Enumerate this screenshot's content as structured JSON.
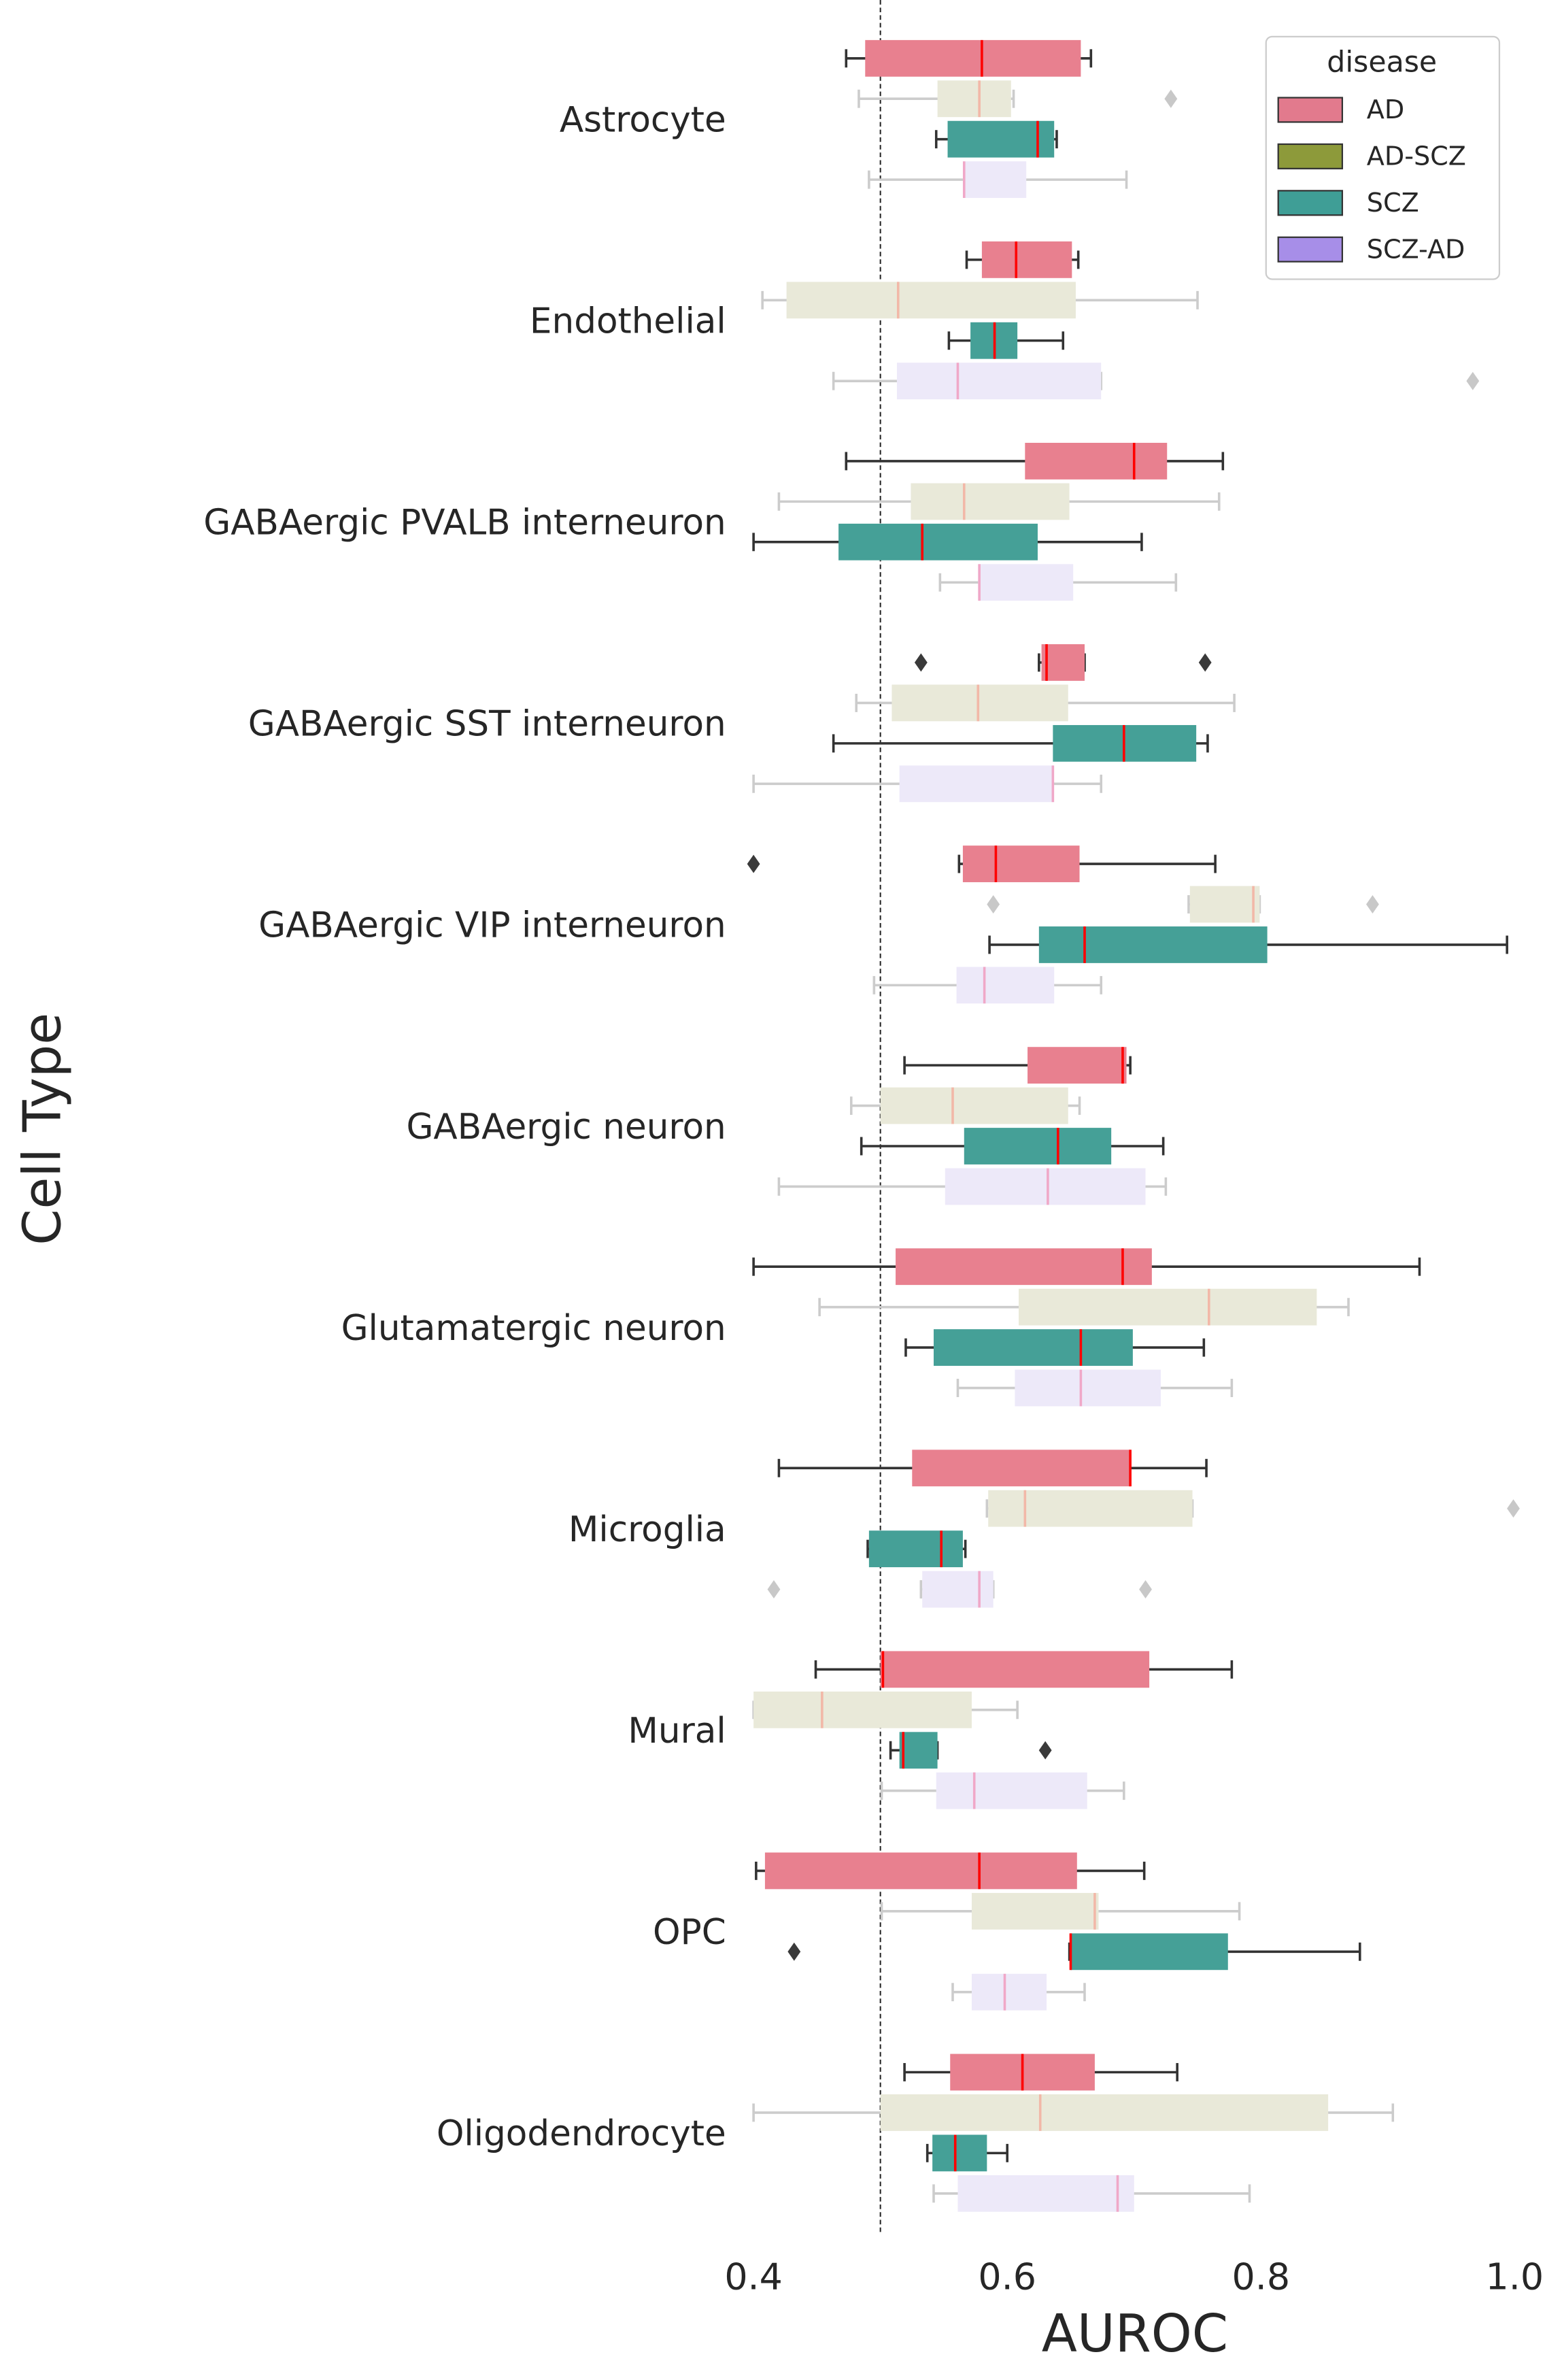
{
  "chart_data": {
    "type": "boxplot",
    "orientation": "horizontal",
    "xlabel": "AUROC",
    "ylabel": "Cell Type",
    "xlim": [
      0.4,
      1.0
    ],
    "xticks": [
      0.4,
      0.6,
      0.8,
      {
        "value": 1.0,
        "label": "1.0"
      }
    ],
    "reference_line": 0.5,
    "legend_title": "disease",
    "legend_position": "upper right",
    "categories": [
      "Astrocyte",
      "Endothelial",
      "GABAergic PVALB interneuron",
      "GABAergic SST interneuron",
      "GABAergic VIP interneuron",
      "GABAergic neuron",
      "Glutamatergic neuron",
      "Microglia",
      "Mural",
      "OPC",
      "Oligodendrocyte"
    ],
    "series": [
      {
        "name": "AD",
        "color": "#e27a8d",
        "box_color": "#e8808f",
        "whisker_color": "#333333",
        "median_color": "#ff0000",
        "values": [
          [
            0.473,
            0.488,
            0.58,
            0.658,
            0.666
          ],
          [
            0.568,
            0.58,
            0.607,
            0.651,
            0.656
          ],
          [
            0.473,
            0.614,
            0.7,
            0.726,
            0.77
          ],
          [
            0.625,
            0.627,
            0.631,
            0.661,
            0.661
          ],
          [
            0.562,
            0.565,
            0.591,
            0.657,
            0.764
          ],
          [
            0.519,
            0.616,
            0.691,
            0.694,
            0.697
          ],
          [
            0.4,
            0.512,
            0.691,
            0.714,
            0.925
          ],
          [
            0.42,
            0.525,
            0.697,
            0.697,
            0.757
          ],
          [
            0.449,
            0.5,
            0.502,
            0.712,
            0.777
          ],
          [
            0.402,
            0.409,
            0.578,
            0.655,
            0.708
          ],
          [
            0.519,
            0.555,
            0.612,
            0.669,
            0.734
          ]
        ],
        "outliers": [
          [],
          [],
          [],
          [
            0.532,
            0.756
          ],
          [
            0.4
          ],
          [],
          [],
          [],
          [],
          [],
          []
        ]
      },
      {
        "name": "AD-SCZ",
        "color": "#8d9a3a",
        "box_color": "#e9e9d9",
        "whisker_color": "#cccccc",
        "median_color": "#f2b8a8",
        "values": [
          [
            0.483,
            0.545,
            0.578,
            0.603,
            0.605
          ],
          [
            0.407,
            0.426,
            0.514,
            0.654,
            0.75
          ],
          [
            0.42,
            0.524,
            0.566,
            0.649,
            0.767
          ],
          [
            0.481,
            0.509,
            0.577,
            0.648,
            0.779
          ],
          [
            0.743,
            0.744,
            0.794,
            0.799,
            0.799
          ],
          [
            0.477,
            0.5,
            0.557,
            0.648,
            0.657
          ],
          [
            0.452,
            0.609,
            0.759,
            0.844,
            0.869
          ],
          [
            0.584,
            0.585,
            0.614,
            0.746,
            0.746
          ],
          [
            0.4,
            0.4,
            0.454,
            0.572,
            0.608
          ],
          [
            0.501,
            0.572,
            0.669,
            0.672,
            0.783
          ],
          [
            0.4,
            0.5,
            0.626,
            0.853,
            0.904
          ]
        ],
        "outliers": [
          [
            0.729
          ],
          [],
          [],
          [],
          [
            0.589,
            0.888
          ],
          [],
          [],
          [
            0.999
          ],
          [],
          [],
          []
        ]
      },
      {
        "name": "SCZ",
        "color": "#3f9e96",
        "box_color": "#45a097",
        "whisker_color": "#333333",
        "median_color": "#ff0000",
        "values": [
          [
            0.544,
            0.553,
            0.624,
            0.637,
            0.639
          ],
          [
            0.554,
            0.571,
            0.59,
            0.608,
            0.644
          ],
          [
            0.4,
            0.467,
            0.533,
            0.624,
            0.706
          ],
          [
            0.463,
            0.636,
            0.692,
            0.749,
            0.758
          ],
          [
            0.586,
            0.625,
            0.661,
            0.805,
            0.994
          ],
          [
            0.485,
            0.566,
            0.64,
            0.682,
            0.723
          ],
          [
            0.52,
            0.542,
            0.658,
            0.699,
            0.755
          ],
          [
            0.49,
            0.491,
            0.548,
            0.565,
            0.567
          ],
          [
            0.508,
            0.515,
            0.518,
            0.545,
            0.545
          ],
          [
            0.649,
            0.65,
            0.65,
            0.774,
            0.878
          ],
          [
            0.537,
            0.541,
            0.559,
            0.584,
            0.6
          ]
        ],
        "outliers": [
          [],
          [],
          [],
          [],
          [],
          [],
          [],
          [],
          [
            0.63
          ],
          [
            0.432
          ],
          []
        ]
      },
      {
        "name": "SCZ-AD",
        "color": "#a78ee8",
        "box_color": "#ede9f9",
        "whisker_color": "#cccccc",
        "median_color": "#f0a8c8",
        "values": [
          [
            0.491,
            0.565,
            0.566,
            0.615,
            0.694
          ],
          [
            0.463,
            0.513,
            0.561,
            0.674,
            0.674
          ],
          [
            0.547,
            0.577,
            0.578,
            0.652,
            0.733
          ],
          [
            0.4,
            0.515,
            0.636,
            0.636,
            0.674
          ],
          [
            0.495,
            0.56,
            0.582,
            0.637,
            0.674
          ],
          [
            0.42,
            0.551,
            0.632,
            0.709,
            0.725
          ],
          [
            0.561,
            0.606,
            0.658,
            0.721,
            0.777
          ],
          [
            0.532,
            0.533,
            0.578,
            0.589,
            0.589
          ],
          [
            0.501,
            0.544,
            0.574,
            0.663,
            0.692
          ],
          [
            0.557,
            0.572,
            0.598,
            0.631,
            0.661
          ],
          [
            0.542,
            0.561,
            0.687,
            0.7,
            0.791
          ]
        ],
        "outliers": [
          [],
          [
            0.967
          ],
          [],
          [],
          [],
          [],
          [],
          [
            0.416,
            0.709
          ],
          [],
          [],
          []
        ]
      }
    ]
  }
}
